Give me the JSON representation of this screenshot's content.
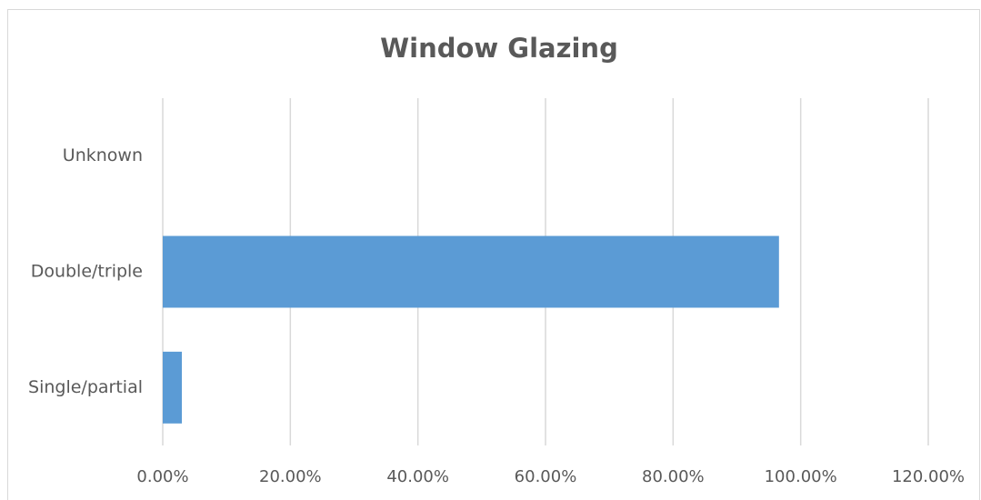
{
  "chart_data": {
    "type": "bar",
    "orientation": "horizontal",
    "title": "Window Glazing",
    "categories": [
      "Single/partial",
      "Double/triple",
      "Unknown"
    ],
    "values": [
      3.0,
      96.6,
      0
    ],
    "color": "#5b9bd5",
    "xlim": [
      0,
      120
    ],
    "xticks": [
      {
        "value": 0,
        "label": "0.00%"
      },
      {
        "value": 20,
        "label": "20.00%"
      },
      {
        "value": 40,
        "label": "40.00%"
      },
      {
        "value": 60,
        "label": "60.00%"
      },
      {
        "value": 80,
        "label": "80.00%"
      },
      {
        "value": 100,
        "label": "100.00%"
      },
      {
        "value": 120,
        "label": "120.00%"
      }
    ],
    "grid": true
  }
}
